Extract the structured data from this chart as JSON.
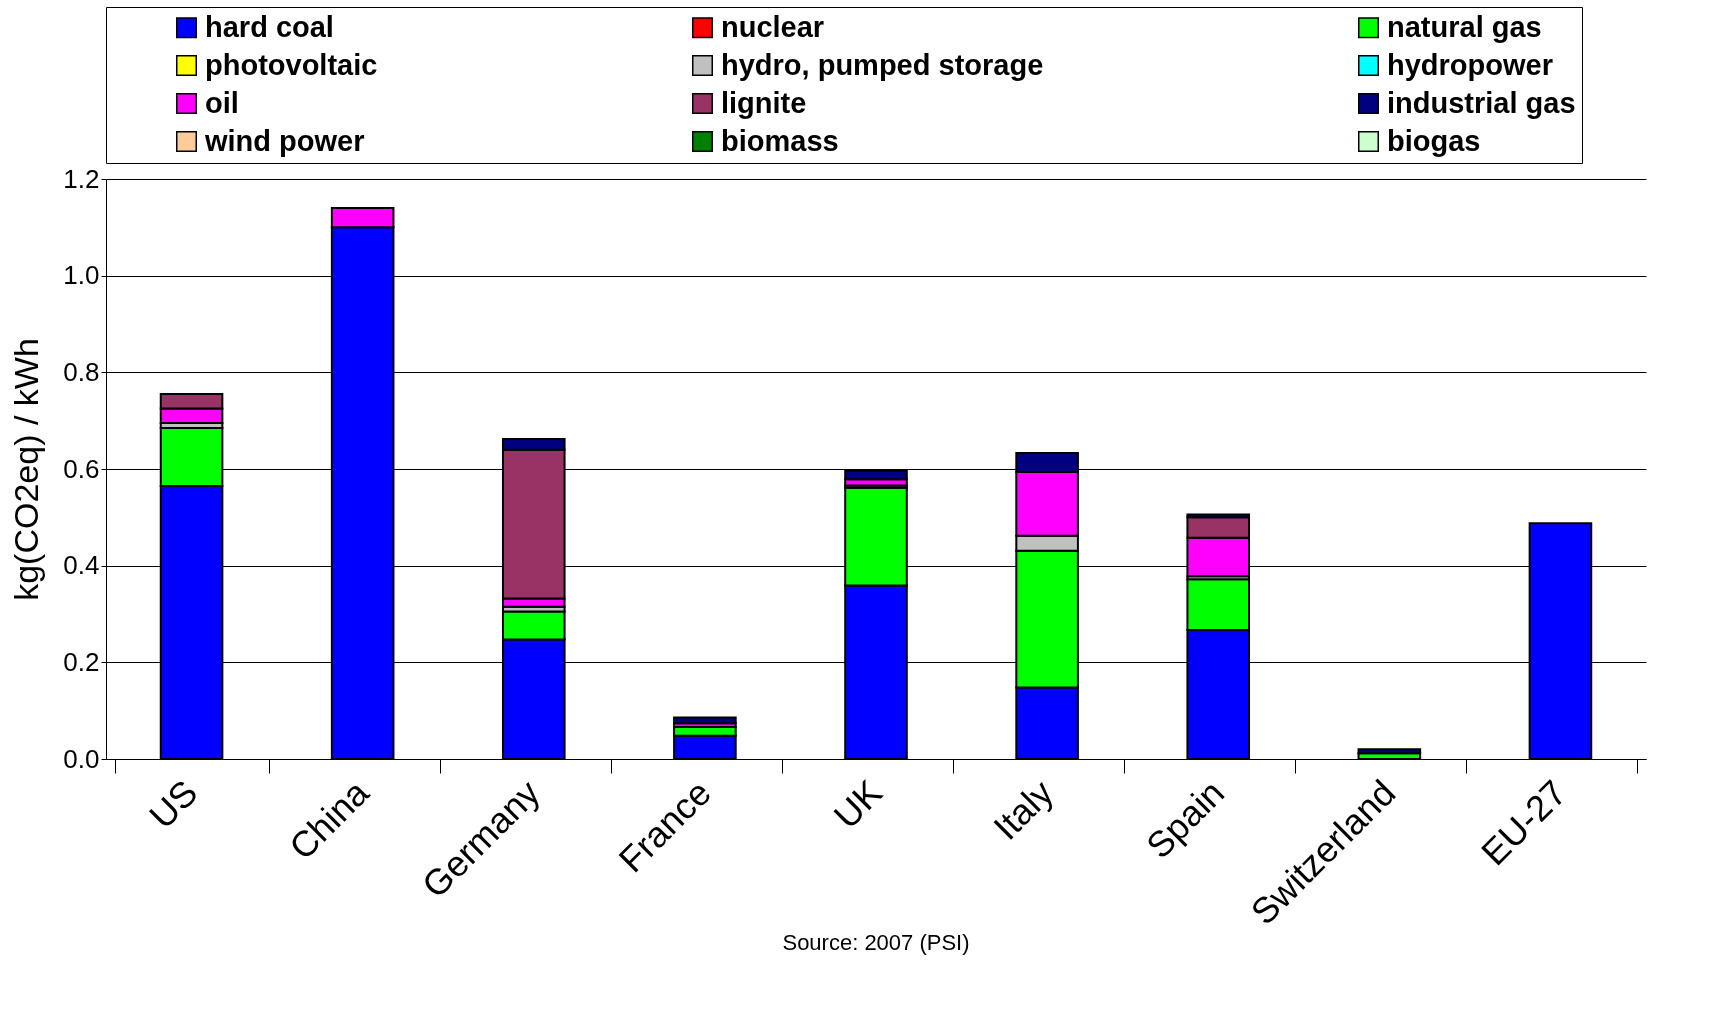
{
  "chart_data": {
    "type": "bar",
    "stacked": true,
    "ylabel": "kg(CO2eq) / kWh",
    "annotations": [
      "Source: 2007 (PSI)"
    ],
    "categories": [
      "US",
      "China",
      "Germany",
      "France",
      "UK",
      "Italy",
      "Spain",
      "Switzerland",
      "EU-27"
    ],
    "ylim": [
      0,
      1.2
    ],
    "yticks": [
      {
        "value": 0,
        "label": "0.0"
      },
      0.2,
      0.4,
      0.6,
      0.8,
      {
        "value": 1,
        "label": "1.0"
      },
      1.2
    ],
    "grid": "y",
    "legend": "top",
    "series": [
      {
        "name": "hard coal",
        "color": "#0000ff",
        "values": [
          0.565,
          1.1,
          0.247,
          0.048,
          0.359,
          0.148,
          0.267,
          0,
          0.488
        ]
      },
      {
        "name": "nuclear",
        "color": "#ff0000",
        "values": [
          0,
          0,
          0,
          0,
          0,
          0,
          0,
          0,
          0
        ]
      },
      {
        "name": "natural gas",
        "color": "#00ff00",
        "values": [
          0.12,
          0,
          0.058,
          0.018,
          0.202,
          0.283,
          0.105,
          0.012,
          0
        ]
      },
      {
        "name": "photovoltaic",
        "color": "#ffff00",
        "values": [
          0,
          0,
          0,
          0,
          0,
          0,
          0,
          0,
          0
        ]
      },
      {
        "name": "hydro, pumped storage",
        "color": "#c0c0c0",
        "values": [
          0.01,
          0,
          0.01,
          0,
          0.005,
          0.031,
          0.006,
          0,
          0
        ]
      },
      {
        "name": "hydropower",
        "color": "#00ffff",
        "values": [
          0,
          0,
          0,
          0,
          0,
          0,
          0,
          0,
          0
        ]
      },
      {
        "name": "oil",
        "color": "#ff00ff",
        "values": [
          0.03,
          0.04,
          0.017,
          0.008,
          0.013,
          0.132,
          0.08,
          0,
          0
        ]
      },
      {
        "name": "lignite",
        "color": "#993366",
        "values": [
          0.03,
          0,
          0.308,
          0,
          0,
          0,
          0.042,
          0,
          0
        ]
      },
      {
        "name": "industrial gas",
        "color": "#000080",
        "values": [
          0,
          0,
          0.022,
          0.012,
          0.017,
          0.039,
          0.006,
          0.008,
          0
        ]
      },
      {
        "name": "wind power",
        "color": "#ffcc99",
        "values": [
          0,
          0,
          0,
          0,
          0,
          0,
          0,
          0,
          0
        ]
      },
      {
        "name": "biomass",
        "color": "#008000",
        "values": [
          0,
          0,
          0,
          0,
          0,
          0,
          0,
          0,
          0
        ]
      },
      {
        "name": "biogas",
        "color": "#ccffcc",
        "values": [
          0,
          0,
          0,
          0,
          0,
          0,
          0,
          0,
          0
        ]
      }
    ]
  }
}
